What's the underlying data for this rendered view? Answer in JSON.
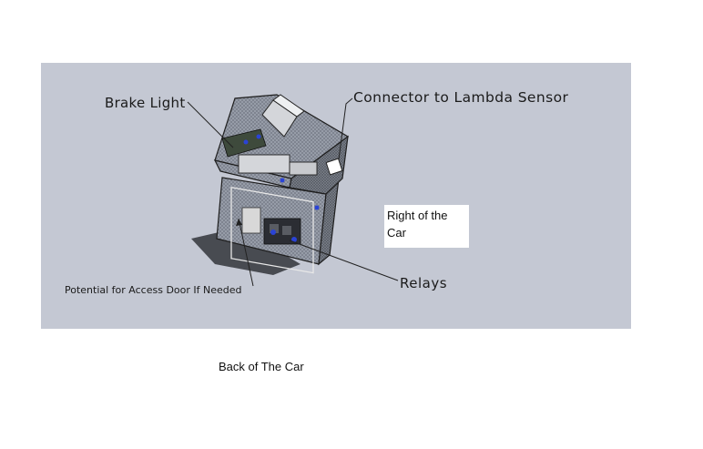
{
  "labels": {
    "brake_light": "Brake Light",
    "connector": "Connector to Lambda Sensor",
    "right_of_car": "Right of the Car",
    "relays": "Relays",
    "access_door": "Potential for Access Door If Needed"
  },
  "caption": "Back of The Car",
  "colors": {
    "viewport_background": "#c4c8d3",
    "page_background": "#ffffff",
    "enclosure_outline": "#1e1e1e",
    "component_highlight": "#2a43d6"
  }
}
